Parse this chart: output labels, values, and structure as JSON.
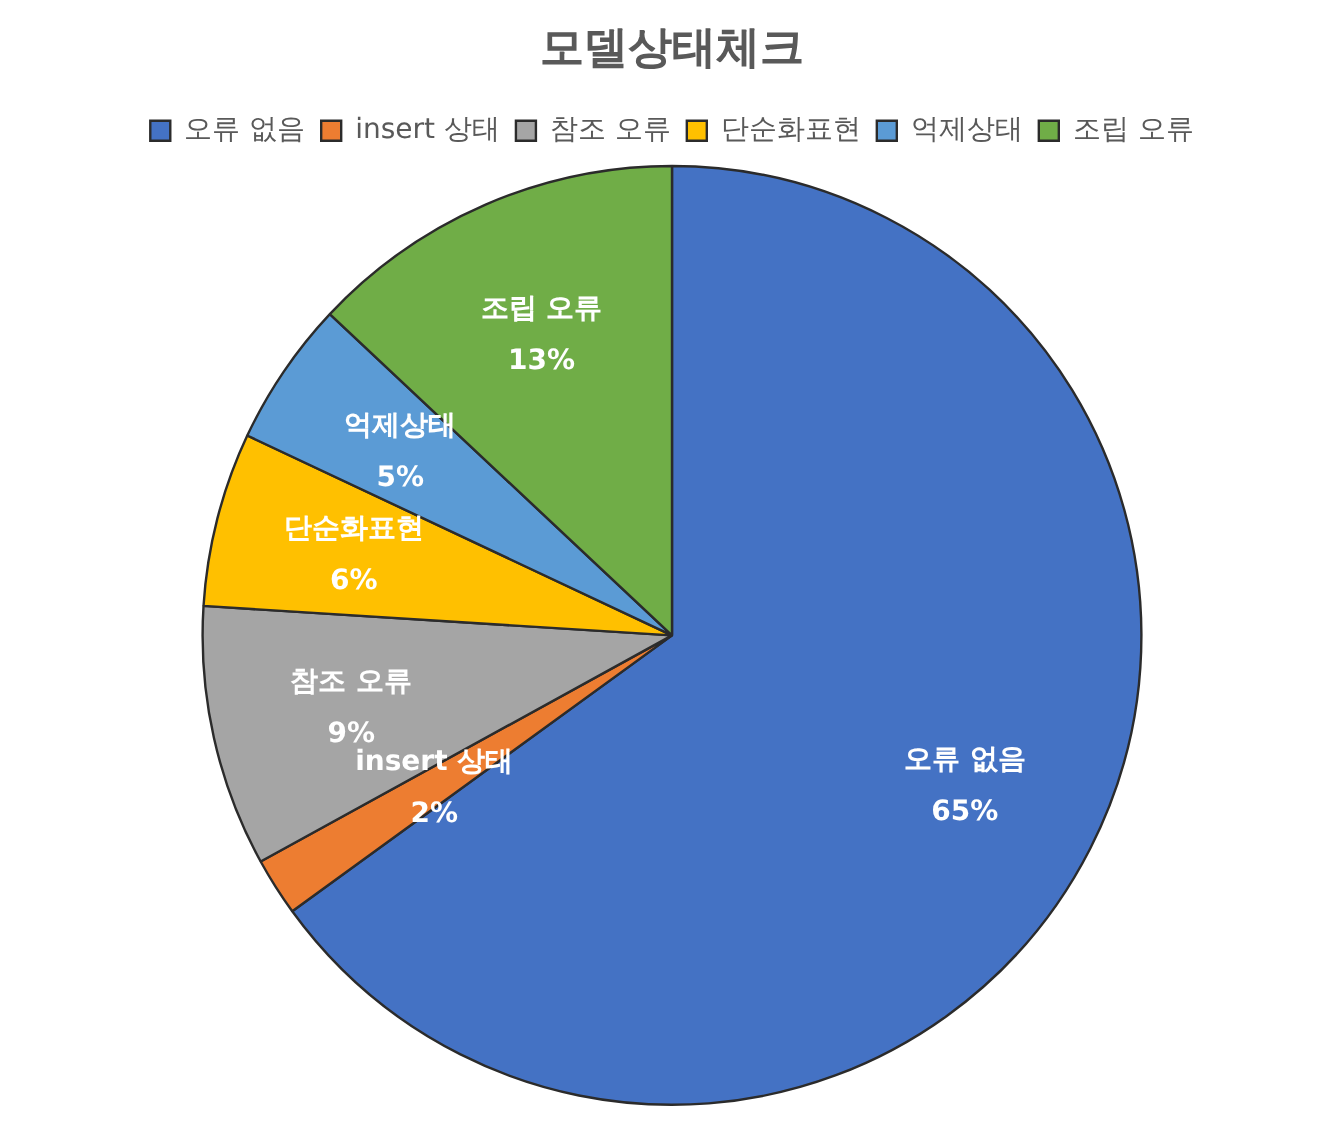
{
  "chart_data": {
    "type": "pie",
    "title": "모델상태체크",
    "categories": [
      "오류 없음",
      "insert 상태",
      "참조 오류",
      "단순화표현",
      "억제상태",
      "조립 오류"
    ],
    "values": [
      65,
      2,
      9,
      6,
      5,
      13
    ],
    "value_labels": [
      "65%",
      "2%",
      "9%",
      "6%",
      "5%",
      "13%"
    ],
    "colors": [
      "#4472c4",
      "#ed7d31",
      "#a5a5a5",
      "#ffc000",
      "#5b9bd5",
      "#70ad47"
    ],
    "legend": "top"
  }
}
